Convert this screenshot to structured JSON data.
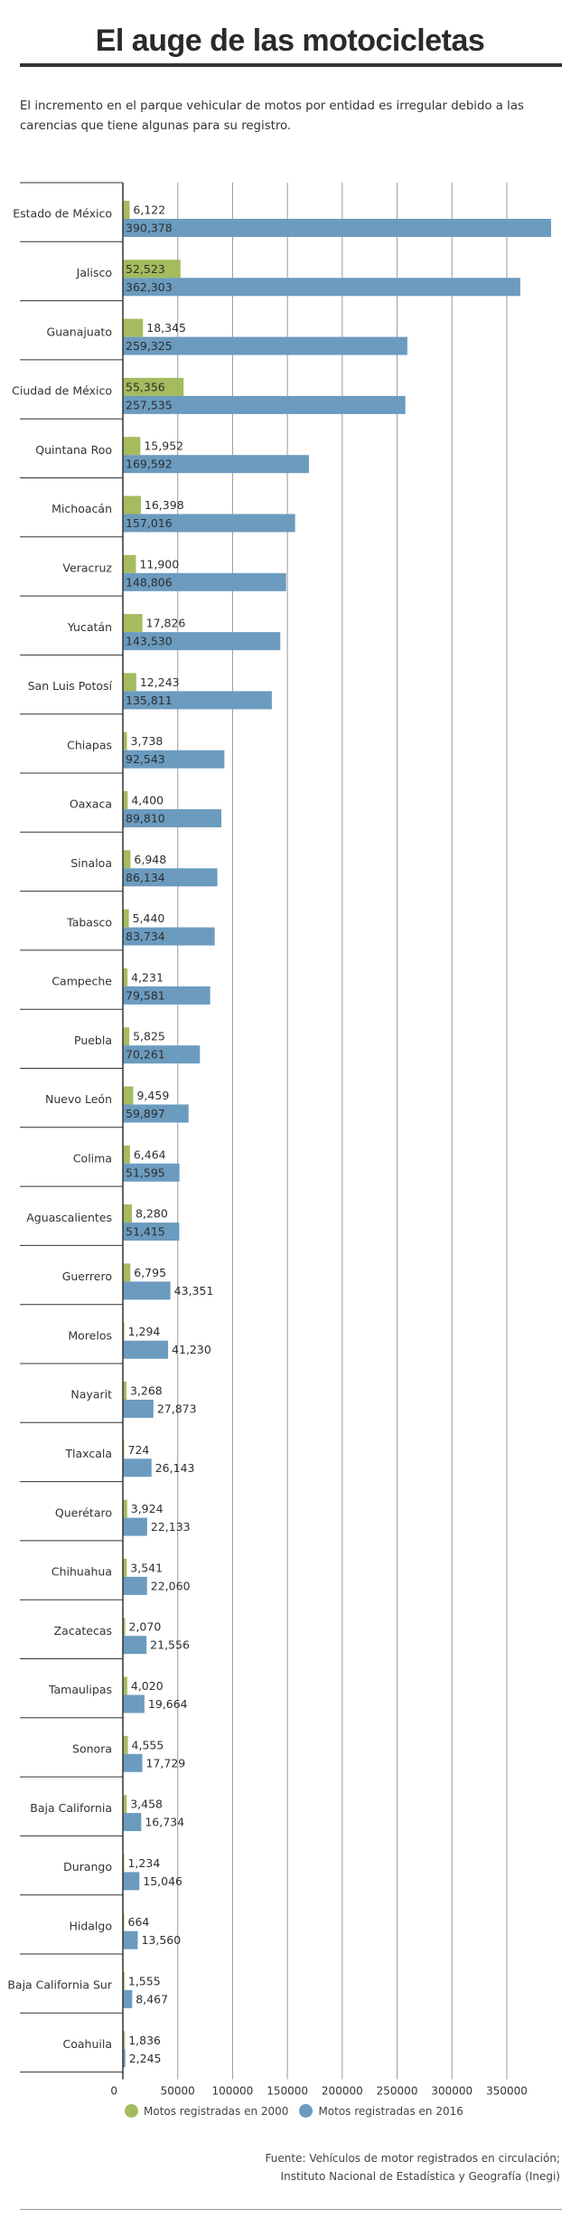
{
  "header": {
    "title": "El auge de las motocicletas",
    "subtitle": "El incremento en el parque vehicular de motos por entidad es irregular debido a las carencias que tiene algunas para su registro."
  },
  "legend": {
    "series_2000": "Motos registradas en 2000",
    "series_2016": "Motos registradas en 2016"
  },
  "source": {
    "line1": "Fuente: Vehículos de motor registrados en circulación;",
    "line2": "Instituto Nacional de Estadística y Geografía (Inegi)"
  },
  "colors": {
    "series_2000": "#a4bb5e",
    "series_2016": "#6b9bbf"
  },
  "chart_data": {
    "type": "bar",
    "orientation": "horizontal",
    "title": "El auge de las motocicletas",
    "xlim": [
      0,
      390378
    ],
    "x_ticks": [
      "0",
      "50000",
      "100000",
      "150000",
      "200000",
      "250000",
      "300000",
      "350000"
    ],
    "grid": true,
    "legend_position": "bottom",
    "categories": [
      "Estado de México",
      "Jalisco",
      "Guanajuato",
      "Ciudad de México",
      "Quintana Roo",
      "Michoacán",
      "Veracruz",
      "Yucatán",
      "San Luis Potosí",
      "Chiapas",
      "Oaxaca",
      "Sinaloa",
      "Tabasco",
      "Campeche",
      "Puebla",
      "Nuevo León",
      "Colima",
      "Aguascalientes",
      "Guerrero",
      "Morelos",
      "Nayarit",
      "Tlaxcala",
      "Querétaro",
      "Chihuahua",
      "Zacatecas",
      "Tamaulipas",
      "Sonora",
      "Baja California",
      "Durango",
      "Hidalgo",
      "Baja California Sur",
      "Coahuila"
    ],
    "series": [
      {
        "name": "Motos registradas en 2000",
        "values": [
          6122,
          52523,
          18345,
          55356,
          15952,
          16398,
          11900,
          17826,
          12243,
          3738,
          4400,
          6948,
          5440,
          4231,
          5825,
          9459,
          6464,
          8280,
          6795,
          1294,
          3268,
          724,
          3924,
          3541,
          2070,
          4020,
          4555,
          3458,
          1234,
          664,
          1555,
          1836
        ],
        "labels": [
          "6,122",
          "52,523",
          "18,345",
          "55,356",
          "15,952",
          "16,398",
          "11,900",
          "17,826",
          "12,243",
          "3,738",
          "4,400",
          "6,948",
          "5,440",
          "4,231",
          "5,825",
          "9,459",
          "6,464",
          "8,280",
          "6,795",
          "1,294",
          "3,268",
          "724",
          "3,924",
          "3,541",
          "2,070",
          "4,020",
          "4,555",
          "3,458",
          "1,234",
          "664",
          "1,555",
          "1,836"
        ]
      },
      {
        "name": "Motos registradas en 2016",
        "values": [
          390378,
          362303,
          259325,
          257535,
          169592,
          157016,
          148806,
          143530,
          135811,
          92543,
          89810,
          86134,
          83734,
          79581,
          70261,
          59897,
          51595,
          51415,
          43351,
          41230,
          27873,
          26143,
          22133,
          22060,
          21556,
          19664,
          17729,
          16734,
          15046,
          13560,
          8467,
          2245
        ],
        "labels": [
          "390,378",
          "362,303",
          "259,325",
          "257,535",
          "169,592",
          "157,016",
          "148,806",
          "143,530",
          "135,811",
          "92,543",
          "89,810",
          "86,134",
          "83,734",
          "79,581",
          "70,261",
          "59,897",
          "51,595",
          "51,415",
          "43,351",
          "41,230",
          "27,873",
          "26,143",
          "22,133",
          "22,060",
          "21,556",
          "19,664",
          "17,729",
          "16,734",
          "15,046",
          "13,560",
          "8,467",
          "2,245"
        ]
      }
    ]
  }
}
